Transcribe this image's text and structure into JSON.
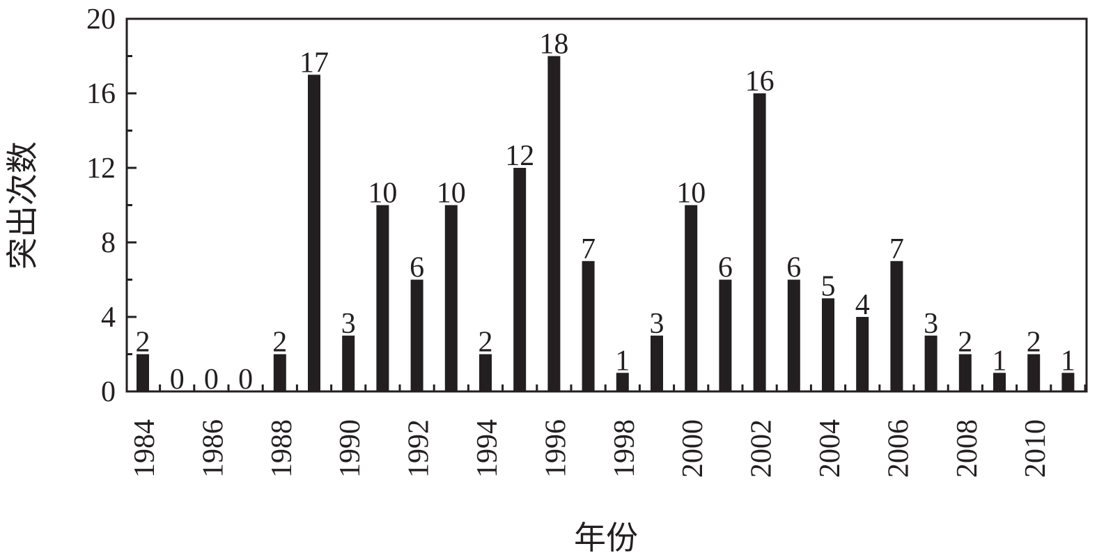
{
  "chart_data": {
    "type": "bar",
    "title": "",
    "xlabel": "年份",
    "ylabel": "突出次数",
    "categories": [
      "1984",
      "1985",
      "1986",
      "1987",
      "1988",
      "1989",
      "1990",
      "1991",
      "1992",
      "1993",
      "1994",
      "1995",
      "1996",
      "1997",
      "1998",
      "1999",
      "2000",
      "2001",
      "2002",
      "2003",
      "2004",
      "2005",
      "2006",
      "2007",
      "2008",
      "2009",
      "2010",
      "2011"
    ],
    "x_tick_labels": [
      "1984",
      "1986",
      "1988",
      "1990",
      "1992",
      "1994",
      "1996",
      "1998",
      "2000",
      "2002",
      "2004",
      "2006",
      "2008",
      "2010"
    ],
    "values": [
      2,
      0,
      0,
      0,
      2,
      17,
      3,
      10,
      6,
      10,
      2,
      12,
      18,
      7,
      1,
      3,
      10,
      6,
      16,
      6,
      5,
      4,
      7,
      3,
      2,
      1,
      2,
      1
    ],
    "ylim": [
      0,
      20
    ],
    "y_ticks": [
      0,
      4,
      8,
      12,
      16,
      20
    ],
    "data_labels": true,
    "grid": false,
    "colors": {
      "bar": "#231f20",
      "axis": "#231f20"
    }
  }
}
